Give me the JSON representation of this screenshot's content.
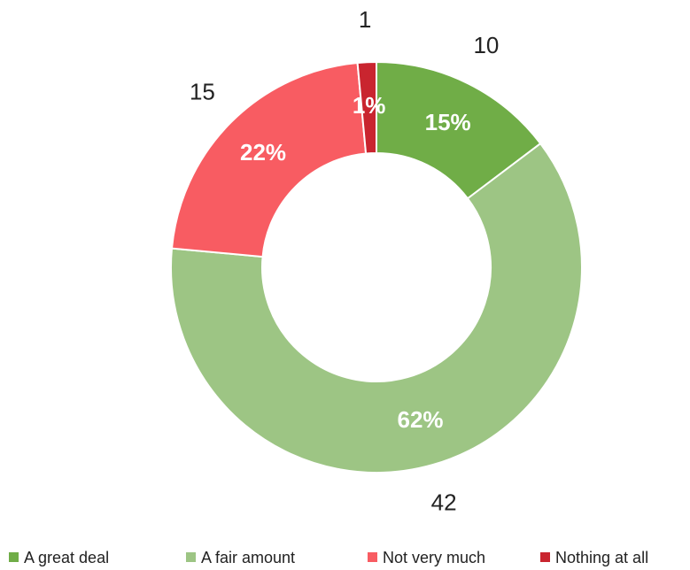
{
  "chart_data": {
    "type": "pie",
    "categories": [
      "A great deal",
      "A fair amount",
      "Not very much",
      "Nothing at all"
    ],
    "values": [
      10,
      42,
      15,
      1
    ],
    "percent_labels": [
      "15%",
      "62%",
      "22%",
      "1%"
    ],
    "colors": [
      "#70ad47",
      "#9dc584",
      "#f85c62",
      "#c9252f"
    ],
    "donut": true,
    "legend": "bottom"
  }
}
